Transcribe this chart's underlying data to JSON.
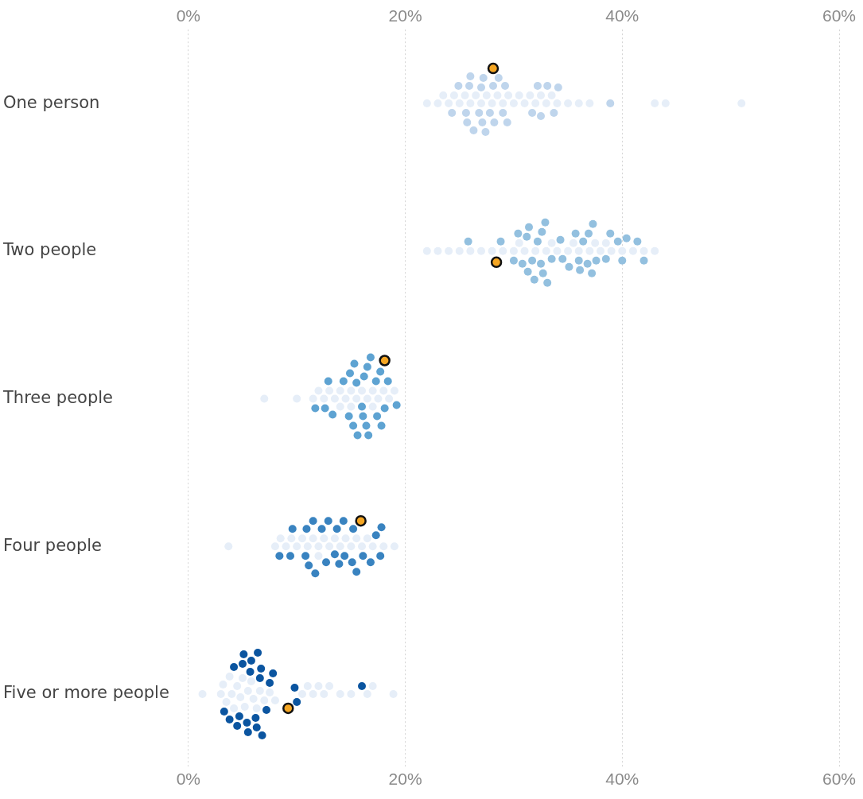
{
  "chart_data": {
    "type": "scatter",
    "orientation": "horizontal",
    "categories": [
      "One person",
      "Two people",
      "Three people",
      "Four people",
      "Five or more people"
    ],
    "xlim": [
      0,
      60
    ],
    "xticks": [
      {
        "value": 0,
        "label": "0%"
      },
      {
        "value": 20,
        "label": "20%"
      },
      {
        "value": 40,
        "label": "40%"
      },
      {
        "value": 60,
        "label": "60%"
      }
    ],
    "x2lim": [
      0,
      60
    ],
    "x2ticks": [
      {
        "value": 0,
        "label": "0%"
      },
      {
        "value": 20,
        "label": "20%"
      },
      {
        "value": 40,
        "label": "40%"
      },
      {
        "value": 60,
        "label": "60%"
      }
    ],
    "grid": "x",
    "legend": false,
    "marker": "circle",
    "series": [
      {
        "color": "#e6eef8",
        "values": [
          22,
          23,
          23.5,
          24,
          24.5,
          25,
          25.5,
          26,
          26.5,
          27,
          27.5,
          28,
          28.5,
          29,
          29.5,
          30,
          30.5,
          31,
          31.5,
          32,
          32.5,
          33,
          33.5,
          34,
          35,
          36,
          37,
          43,
          44,
          51
        ],
        "x": [
          "One person",
          "One person",
          "One person",
          "One person",
          "One person",
          "One person",
          "One person",
          "One person",
          "One person",
          "One person",
          "One person",
          "One person",
          "One person",
          "One person",
          "One person",
          "One person",
          "One person",
          "One person",
          "One person",
          "One person",
          "One person",
          "One person",
          "One person",
          "One person",
          "One person",
          "One person",
          "One person",
          "One person",
          "One person",
          "One person"
        ]
      },
      {
        "color": "#e6eef8",
        "values": [
          22,
          23,
          24,
          25,
          26,
          27,
          28,
          29,
          30,
          30.5,
          31,
          32,
          33,
          33.5,
          34,
          35,
          35.5,
          36,
          37,
          37.5,
          38,
          38.5,
          39,
          40,
          41,
          42,
          43
        ],
        "x": [
          "Two people",
          "Two people",
          "Two people",
          "Two people",
          "Two people",
          "Two people",
          "Two people",
          "Two people",
          "Two people",
          "Two people",
          "Two people",
          "Two people",
          "Two people",
          "Two people",
          "Two people",
          "Two people",
          "Two people",
          "Two people",
          "Two people",
          "Two people",
          "Two people",
          "Two people",
          "Two people",
          "Two people",
          "Two people",
          "Two people",
          "Two people"
        ]
      },
      {
        "color": "#e6eef8",
        "values": [
          7,
          10,
          11.5,
          12,
          12.5,
          13,
          13.5,
          14,
          14,
          14.5,
          15,
          15,
          15.5,
          16,
          16.5,
          17,
          17,
          17.5,
          18,
          18.5,
          19
        ],
        "x": [
          "Three people",
          "Three people",
          "Three people",
          "Three people",
          "Three people",
          "Three people",
          "Three people",
          "Three people",
          "Three people",
          "Three people",
          "Three people",
          "Three people",
          "Three people",
          "Three people",
          "Three people",
          "Three people",
          "Three people",
          "Three people",
          "Three people",
          "Three people",
          "Three people"
        ]
      },
      {
        "color": "#e6eef8",
        "values": [
          3.7,
          8,
          8.5,
          9,
          9.5,
          10,
          10.5,
          11,
          11.5,
          12,
          12,
          12.5,
          13,
          13.5,
          14,
          14.5,
          15,
          15.5,
          16,
          16.5,
          17,
          18,
          19
        ],
        "x": [
          "Four people",
          "Four people",
          "Four people",
          "Four people",
          "Four people",
          "Four people",
          "Four people",
          "Four people",
          "Four people",
          "Four people",
          "Four people",
          "Four people",
          "Four people",
          "Four people",
          "Four people",
          "Four people",
          "Four people",
          "Four people",
          "Four people",
          "Four people",
          "Four people",
          "Four people",
          "Four people"
        ]
      },
      {
        "color": "#e6eef8",
        "values": [
          1.3,
          3,
          3.2,
          3.5,
          3.8,
          4,
          4.2,
          4.5,
          4.8,
          5,
          5.2,
          5.5,
          5.8,
          6,
          6.3,
          6.6,
          7,
          7.5,
          8,
          10.5,
          11,
          11.5,
          12,
          12.5,
          13,
          14,
          15,
          16.5,
          17,
          18.9
        ],
        "x": [
          "Five or more people",
          "Five or more people",
          "Five or more people",
          "Five or more people",
          "Five or more people",
          "Five or more people",
          "Five or more people",
          "Five or more people",
          "Five or more people",
          "Five or more people",
          "Five or more people",
          "Five or more people",
          "Five or more people",
          "Five or more people",
          "Five or more people",
          "Five or more people",
          "Five or more people",
          "Five or more people",
          "Five or more people",
          "Five or more people",
          "Five or more people",
          "Five or more people",
          "Five or more people",
          "Five or more people",
          "Five or more people",
          "Five or more people",
          "Five or more people",
          "Five or more people",
          "Five or more people",
          "Five or more people"
        ]
      },
      {
        "color": "#bfd5ec",
        "values": [
          28.1,
          28.2,
          27.1,
          27.8,
          26.0,
          28.6,
          25.7,
          24.3,
          24.9,
          27.0,
          29.0,
          29.4,
          26.8,
          27.4,
          25.9,
          25.6,
          26.3,
          27.2,
          29.2,
          32.2,
          32.5,
          34.1,
          33.7,
          31.7,
          33.1,
          38.9
        ],
        "x": [
          "One person",
          "One person",
          "One person",
          "One person",
          "One person",
          "One person",
          "One person",
          "One person",
          "One person",
          "One person",
          "One person",
          "One person",
          "One person",
          "One person",
          "One person",
          "One person",
          "One person",
          "One person",
          "One person",
          "One person",
          "One person",
          "One person",
          "One person",
          "One person",
          "One person",
          "One person"
        ]
      },
      {
        "color": "#93c0df",
        "values": [
          30.4,
          31.2,
          32.7,
          31.3,
          32.2,
          30.0,
          32.6,
          31.9,
          33.5,
          34.3,
          36.0,
          35.7,
          36.1,
          37.6,
          37.2,
          37.3,
          38.5,
          38.9,
          39.6,
          40.0,
          40.4,
          41.4,
          42.0,
          35.1,
          36.4,
          36.9,
          34.5,
          36.8,
          31.7,
          32.5,
          30.8,
          31.4,
          32.9,
          33.1,
          25.8,
          28.8
        ],
        "x": [
          "Two people",
          "Two people",
          "Two people",
          "Two people",
          "Two people",
          "Two people",
          "Two people",
          "Two people",
          "Two people",
          "Two people",
          "Two people",
          "Two people",
          "Two people",
          "Two people",
          "Two people",
          "Two people",
          "Two people",
          "Two people",
          "Two people",
          "Two people",
          "Two people",
          "Two people",
          "Two people",
          "Two people",
          "Two people",
          "Two people",
          "Two people",
          "Two people",
          "Two people",
          "Two people",
          "Two people",
          "Two people",
          "Two people",
          "Two people",
          "Two people",
          "Two people"
        ]
      },
      {
        "color": "#5ea3d2",
        "values": [
          15.5,
          16.1,
          14.9,
          16.6,
          14.3,
          15.2,
          16.0,
          16.8,
          17.4,
          17.7,
          18.4,
          13.3,
          12.6,
          12.9,
          11.7,
          15.3,
          17.3,
          18.1,
          19.2,
          15.6,
          16.4,
          17.8,
          16.5,
          14.8,
          16.2
        ],
        "x": [
          "Three people",
          "Three people",
          "Three people",
          "Three people",
          "Three people",
          "Three people",
          "Three people",
          "Three people",
          "Three people",
          "Three people",
          "Three people",
          "Three people",
          "Three people",
          "Three people",
          "Three people",
          "Three people",
          "Three people",
          "Three people",
          "Three people",
          "Three people",
          "Three people",
          "Three people",
          "Three people",
          "Three people",
          "Three people"
        ]
      },
      {
        "color": "#3983c0",
        "values": [
          9.4,
          11.5,
          12.7,
          13.5,
          14.3,
          15.5,
          16.1,
          14.4,
          12.3,
          17.7,
          8.4,
          10.8,
          11.7,
          13.7,
          15.1,
          16.8,
          17.3,
          17.8,
          9.6,
          11.1,
          12.9,
          13.9,
          15.2,
          10.9
        ],
        "x": [
          "Four people",
          "Four people",
          "Four people",
          "Four people",
          "Four people",
          "Four people",
          "Four people",
          "Four people",
          "Four people",
          "Four people",
          "Four people",
          "Four people",
          "Four people",
          "Four people",
          "Four people",
          "Four people",
          "Four people",
          "Four people",
          "Four people",
          "Four people",
          "Four people",
          "Four people",
          "Four people",
          "Four people"
        ]
      },
      {
        "color": "#0b55a0",
        "values": [
          5.8,
          6.3,
          3.8,
          5.1,
          6.6,
          7.5,
          7.8,
          3.3,
          4.2,
          4.7,
          5.4,
          6.7,
          7.2,
          5.0,
          6.8,
          4.5,
          5.7,
          6.4,
          6.2,
          5.5,
          10.0,
          9.8,
          16.0
        ],
        "x": [
          "Five or more people",
          "Five or more people",
          "Five or more people",
          "Five or more people",
          "Five or more people",
          "Five or more people",
          "Five or more people",
          "Five or more people",
          "Five or more people",
          "Five or more people",
          "Five or more people",
          "Five or more people",
          "Five or more people",
          "Five or more people",
          "Five or more people",
          "Five or more people",
          "Five or more people",
          "Five or more people",
          "Five or more people",
          "Five or more people",
          "Five or more people",
          "Five or more people",
          "Five or more people"
        ]
      },
      {
        "color": "#f5a623",
        "values": [
          28.1,
          28.4,
          18.1,
          15.9,
          9.2
        ],
        "x": [
          "One person",
          "Two people",
          "Three people",
          "Four people",
          "Five or more people"
        ]
      }
    ]
  }
}
